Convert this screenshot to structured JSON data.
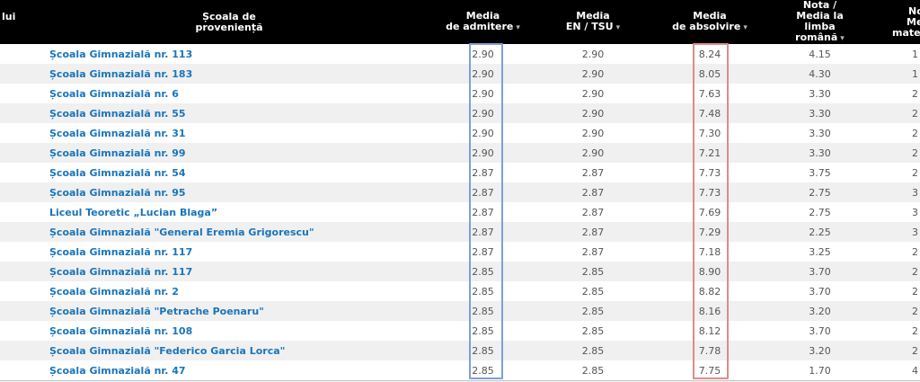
{
  "colors": {
    "header_bg": "#000000",
    "header_text": "#ffffff",
    "link": "#1a75ba",
    "value_text": "#555555",
    "row_alt_bg": "#f0f0f0",
    "admitere_box_border": "#7f9edb",
    "absolvire_box_border": "#de8b8b",
    "table_bottom_border": "#c6c6c6"
  },
  "icons": {
    "sort_desc": "▾"
  },
  "header": {
    "left_partial": "lui",
    "school": [
      "Școala de",
      "proveniență"
    ],
    "admitere": [
      "Media",
      "de admitere"
    ],
    "en_tsu": [
      "Media",
      "EN / TSU"
    ],
    "absolvire": [
      "Media",
      "de absolvire"
    ],
    "romana": [
      "Nota /",
      "Media la",
      "limba",
      "română"
    ],
    "matematica_partial": [
      "No",
      "Me",
      "matem"
    ]
  },
  "rows": [
    {
      "school": "Școala Gimnazială nr. 113",
      "admitere": "2.90",
      "en_tsu": "2.90",
      "absolvire": "8.24",
      "romana": "4.15",
      "matematica_partial": "1"
    },
    {
      "school": "Școala Gimnazială nr. 183",
      "admitere": "2.90",
      "en_tsu": "2.90",
      "absolvire": "8.05",
      "romana": "4.30",
      "matematica_partial": "1"
    },
    {
      "school": "Școala Gimnazială nr. 6",
      "admitere": "2.90",
      "en_tsu": "2.90",
      "absolvire": "7.63",
      "romana": "3.30",
      "matematica_partial": "2"
    },
    {
      "school": "Școala Gimnazială nr. 55",
      "admitere": "2.90",
      "en_tsu": "2.90",
      "absolvire": "7.48",
      "romana": "3.30",
      "matematica_partial": "2"
    },
    {
      "school": "Școala Gimnazială nr. 31",
      "admitere": "2.90",
      "en_tsu": "2.90",
      "absolvire": "7.30",
      "romana": "3.30",
      "matematica_partial": "2"
    },
    {
      "school": "Școala Gimnazială nr. 99",
      "admitere": "2.90",
      "en_tsu": "2.90",
      "absolvire": "7.21",
      "romana": "3.30",
      "matematica_partial": "2"
    },
    {
      "school": "Școala Gimnazială nr. 54",
      "admitere": "2.87",
      "en_tsu": "2.87",
      "absolvire": "7.73",
      "romana": "3.75",
      "matematica_partial": "2"
    },
    {
      "school": "Școala Gimnazială nr. 95",
      "admitere": "2.87",
      "en_tsu": "2.87",
      "absolvire": "7.73",
      "romana": "2.75",
      "matematica_partial": "3"
    },
    {
      "school": "Liceul Teoretic „Lucian Blaga”",
      "admitere": "2.87",
      "en_tsu": "2.87",
      "absolvire": "7.69",
      "romana": "2.75",
      "matematica_partial": "3"
    },
    {
      "school": "Școala Gimnazială \"General Eremia Grigorescu\"",
      "admitere": "2.87",
      "en_tsu": "2.87",
      "absolvire": "7.29",
      "romana": "2.25",
      "matematica_partial": "3"
    },
    {
      "school": "Școala Gimnazială nr. 117",
      "admitere": "2.87",
      "en_tsu": "2.87",
      "absolvire": "7.18",
      "romana": "3.25",
      "matematica_partial": "2"
    },
    {
      "school": "Școala Gimnazială nr. 117",
      "admitere": "2.85",
      "en_tsu": "2.85",
      "absolvire": "8.90",
      "romana": "3.70",
      "matematica_partial": "2"
    },
    {
      "school": "Școala Gimnazială nr. 2",
      "admitere": "2.85",
      "en_tsu": "2.85",
      "absolvire": "8.82",
      "romana": "3.70",
      "matematica_partial": "2"
    },
    {
      "school": "Școala Gimnazială \"Petrache Poenaru\"",
      "admitere": "2.85",
      "en_tsu": "2.85",
      "absolvire": "8.16",
      "romana": "3.20",
      "matematica_partial": "2"
    },
    {
      "school": "Școala Gimnazială nr. 108",
      "admitere": "2.85",
      "en_tsu": "2.85",
      "absolvire": "8.12",
      "romana": "3.70",
      "matematica_partial": "2"
    },
    {
      "school": "Școala Gimnazială \"Federico Garcia Lorca\"",
      "admitere": "2.85",
      "en_tsu": "2.85",
      "absolvire": "7.78",
      "romana": "3.20",
      "matematica_partial": "2"
    },
    {
      "school": "Școala Gimnazială nr. 47",
      "admitere": "2.85",
      "en_tsu": "2.85",
      "absolvire": "7.75",
      "romana": "1.70",
      "matematica_partial": "4"
    }
  ]
}
